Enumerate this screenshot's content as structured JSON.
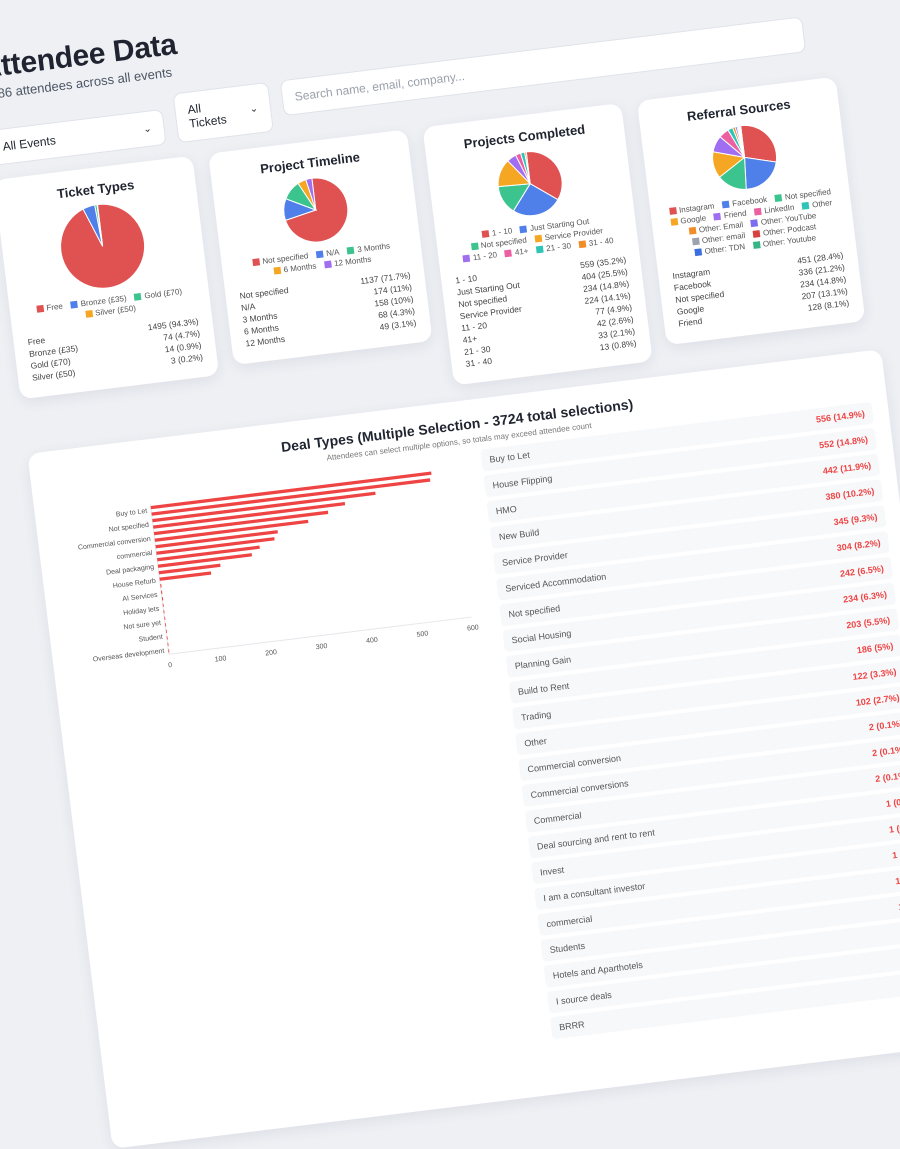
{
  "header": {
    "title": "Attendee Data",
    "subtitle": "1586 attendees across all events"
  },
  "filters": {
    "events": "All Events",
    "tickets": "All Tickets",
    "search_placeholder": "Search name, email, company..."
  },
  "cards": [
    {
      "title": "Ticket Types",
      "items": [
        {
          "label": "Free",
          "count": 1495,
          "display": "1495 (94.3%)",
          "color": "#e05252"
        },
        {
          "label": "Bronze (£35)",
          "count": 74,
          "display": "74 (4.7%)",
          "color": "#4f7fe8"
        },
        {
          "label": "Gold (£70)",
          "count": 14,
          "display": "14 (0.9%)",
          "color": "#3cc48f"
        },
        {
          "label": "Silver (£50)",
          "count": 3,
          "display": "3 (0.2%)",
          "color": "#f5a623"
        }
      ],
      "legend_extra": []
    },
    {
      "title": "Project Timeline",
      "items": [
        {
          "label": "Not specified",
          "count": 1137,
          "display": "1137 (71.7%)",
          "color": "#e05252"
        },
        {
          "label": "N/A",
          "count": 174,
          "display": "174 (11%)",
          "color": "#4f7fe8"
        },
        {
          "label": "3 Months",
          "count": 158,
          "display": "158 (10%)",
          "color": "#3cc48f"
        },
        {
          "label": "6 Months",
          "count": 68,
          "display": "68 (4.3%)",
          "color": "#f5a623"
        },
        {
          "label": "12 Months",
          "count": 49,
          "display": "49 (3.1%)",
          "color": "#a06ef0"
        }
      ],
      "legend_extra": []
    },
    {
      "title": "Projects Completed",
      "items": [
        {
          "label": "1 - 10",
          "count": 559,
          "display": "559 (35.2%)",
          "color": "#e05252"
        },
        {
          "label": "Just Starting Out",
          "count": 404,
          "display": "404 (25.5%)",
          "color": "#4f7fe8"
        },
        {
          "label": "Not specified",
          "count": 234,
          "display": "234 (14.8%)",
          "color": "#3cc48f"
        },
        {
          "label": "Service Provider",
          "count": 224,
          "display": "224 (14.1%)",
          "color": "#f5a623"
        },
        {
          "label": "11 - 20",
          "count": 77,
          "display": "77 (4.9%)",
          "color": "#a06ef0"
        },
        {
          "label": "41+",
          "count": 42,
          "display": "42 (2.6%)",
          "color": "#ec5fa0"
        },
        {
          "label": "21 - 30",
          "count": 33,
          "display": "33 (2.1%)",
          "color": "#2ec4b6"
        },
        {
          "label": "31 - 40",
          "count": 13,
          "display": "13 (0.8%)",
          "color": "#f28c28"
        }
      ],
      "legend_extra": []
    },
    {
      "title": "Referral Sources",
      "items": [
        {
          "label": "Instagram",
          "count": 451,
          "display": "451 (28.4%)",
          "color": "#e05252"
        },
        {
          "label": "Facebook",
          "count": 336,
          "display": "336 (21.2%)",
          "color": "#4f7fe8"
        },
        {
          "label": "Not specified",
          "count": 234,
          "display": "234 (14.8%)",
          "color": "#3cc48f"
        },
        {
          "label": "Google",
          "count": 207,
          "display": "207 (13.1%)",
          "color": "#f5a623"
        },
        {
          "label": "Friend",
          "count": 128,
          "display": "128 (8.1%)",
          "color": "#a06ef0"
        }
      ],
      "legend_extra": [
        {
          "label": "LinkedIn",
          "count": 80,
          "color": "#ec5fa0"
        },
        {
          "label": "Other",
          "count": 40,
          "color": "#2ec4b6"
        },
        {
          "label": "Other: Email",
          "count": 20,
          "color": "#f28c28"
        },
        {
          "label": "Other: YouTube",
          "count": 15,
          "color": "#7c6cf0"
        },
        {
          "label": "Other: email",
          "count": 10,
          "color": "#9ca3af"
        },
        {
          "label": "Other: Podcast",
          "count": 8,
          "color": "#d94040"
        },
        {
          "label": "Other: TDN",
          "count": 6,
          "color": "#3b6fe0"
        },
        {
          "label": "Other: Youtube",
          "count": 5,
          "color": "#33b585"
        }
      ]
    }
  ],
  "deal_types": {
    "title": "Deal Types (Multiple Selection - 3724 total selections)",
    "note": "Attendees can select multiple options, so totals may exceed attendee count",
    "accent": "#ef4444",
    "items": [
      {
        "label": "Buy to Let",
        "count": 556,
        "display": "556 (14.9%)"
      },
      {
        "label": "House Flipping",
        "count": 552,
        "display": "552 (14.8%)"
      },
      {
        "label": "HMO",
        "count": 442,
        "display": "442 (11.9%)"
      },
      {
        "label": "New Build",
        "count": 380,
        "display": "380 (10.2%)"
      },
      {
        "label": "Service Provider",
        "count": 345,
        "display": "345 (9.3%)"
      },
      {
        "label": "Serviced Accommodation",
        "count": 304,
        "display": "304 (8.2%)"
      },
      {
        "label": "Not specified",
        "count": 242,
        "display": "242 (6.5%)"
      },
      {
        "label": "Social Housing",
        "count": 234,
        "display": "234 (6.3%)"
      },
      {
        "label": "Planning Gain",
        "count": 203,
        "display": "203 (5.5%)"
      },
      {
        "label": "Build to Rent",
        "count": 186,
        "display": "186 (5%)"
      },
      {
        "label": "Trading",
        "count": 122,
        "display": "122 (3.3%)"
      },
      {
        "label": "Other",
        "count": 102,
        "display": "102 (2.7%)"
      },
      {
        "label": "Commercial conversion",
        "count": 2,
        "display": "2 (0.1%)"
      },
      {
        "label": "Commercial conversions",
        "count": 2,
        "display": "2 (0.1%)"
      },
      {
        "label": "Commercial",
        "count": 2,
        "display": "2 (0.1%)"
      },
      {
        "label": "Deal sourcing and rent to rent",
        "count": 1,
        "display": "1 (0%)"
      },
      {
        "label": "Invest",
        "count": 1,
        "display": "1 (0%)"
      },
      {
        "label": "I am a consultant investor",
        "count": 1,
        "display": "1 (0%)"
      },
      {
        "label": "commercial",
        "count": 1,
        "display": "1 (0%)"
      },
      {
        "label": "Students",
        "count": 1,
        "display": "1 (0%)"
      },
      {
        "label": "Hotels and Aparthotels",
        "count": 1,
        "display": "1 (0%)"
      },
      {
        "label": "I source deals",
        "count": 1,
        "display": "1 (0%)"
      },
      {
        "label": "BRRR",
        "count": 1,
        "display": "1 (0%)"
      }
    ]
  },
  "chart_data": {
    "type": "bar",
    "orientation": "horizontal",
    "ytick_labels": [
      "Buy to Let",
      "Not specified",
      "Commercial conversion",
      "commercial",
      "Deal packaging",
      "House Refurb",
      "AI Services",
      "Holiday lets",
      "Not sure yet",
      "Student",
      "Overseas development"
    ],
    "xticks": [
      0,
      100,
      200,
      300,
      400,
      500,
      600
    ],
    "xlim": [
      0,
      600
    ],
    "grid": false,
    "color": "#ef4444",
    "source": "deal_types.items"
  }
}
